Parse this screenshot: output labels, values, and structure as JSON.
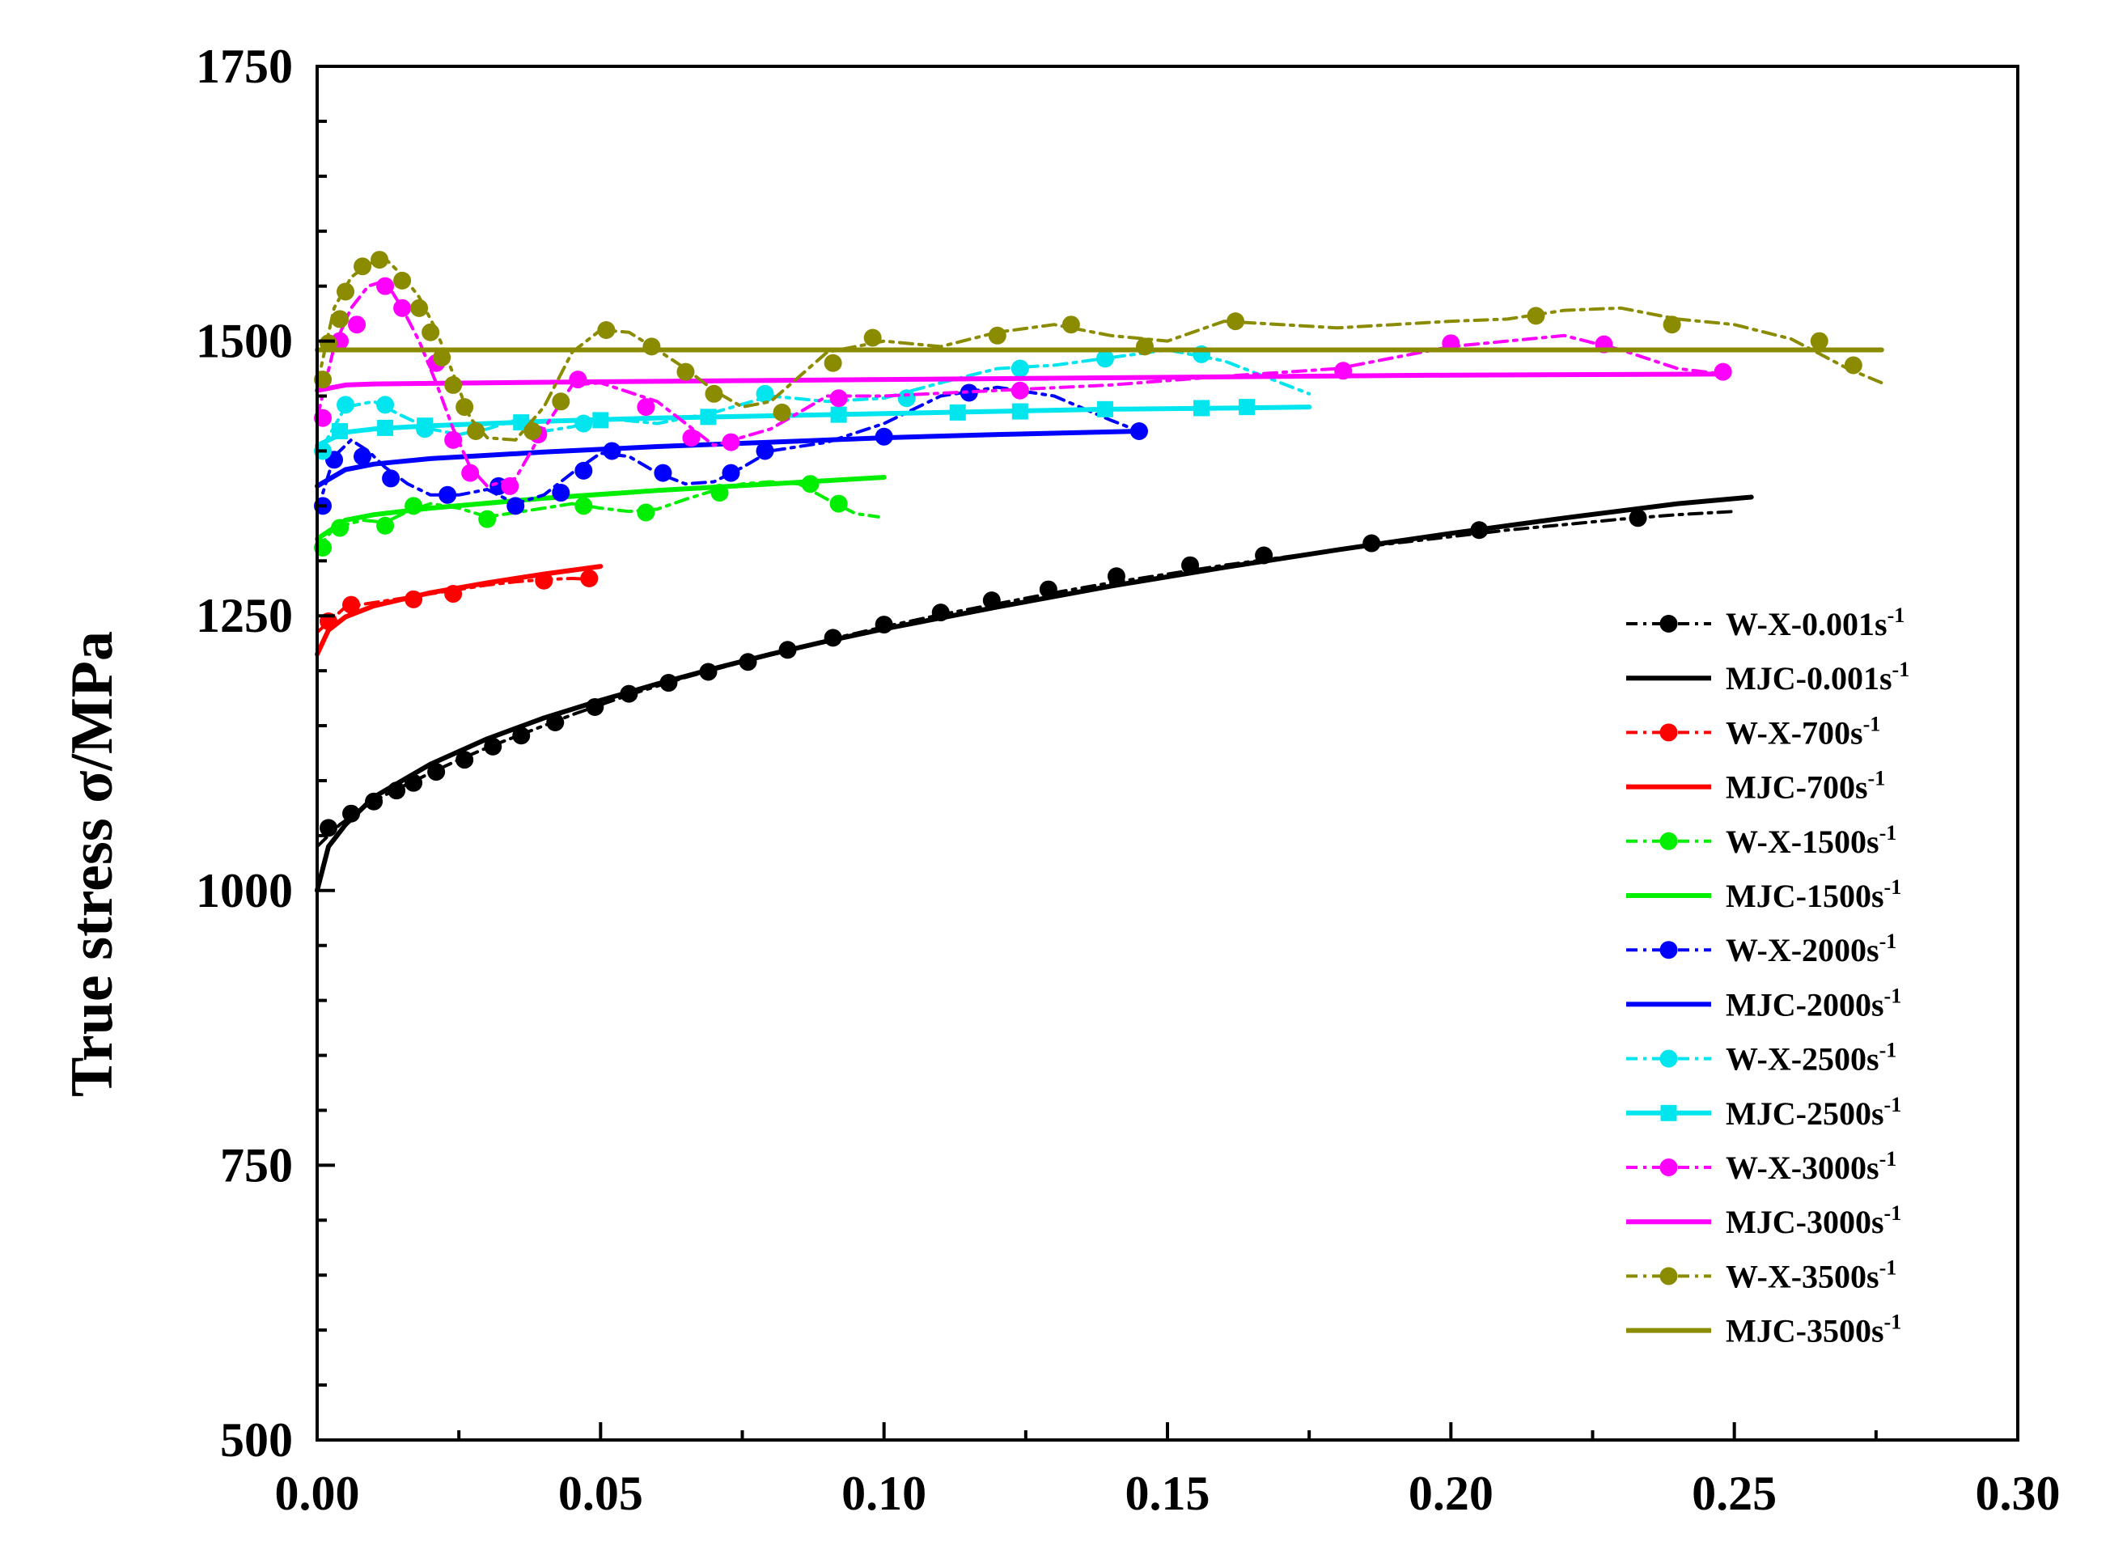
{
  "chart_data": {
    "type": "line",
    "title": "",
    "xlabel": "",
    "ylabel": "True stress σ/MPa",
    "xlim": [
      0,
      0.3
    ],
    "ylim": [
      500,
      1750
    ],
    "x_ticks": [
      "0.00",
      "0.05",
      "0.10",
      "0.15",
      "0.20",
      "0.25",
      "0.30"
    ],
    "y_ticks": [
      "500",
      "750",
      "1000",
      "1250",
      "1500",
      "1750"
    ],
    "grid": false,
    "legend_position": "right",
    "series": [
      {
        "name": "W-X-0.001",
        "legend_label": "W-X-0.001s",
        "legend_sup": "-1",
        "kind": "experimental",
        "color": "#000000",
        "marker": "circle",
        "x": [
          0,
          0.004,
          0.008,
          0.012,
          0.016,
          0.02,
          0.025,
          0.03,
          0.035,
          0.04,
          0.045,
          0.05,
          0.055,
          0.06,
          0.065,
          0.07,
          0.075,
          0.08,
          0.085,
          0.09,
          0.095,
          0.1,
          0.11,
          0.12,
          0.13,
          0.14,
          0.15,
          0.16,
          0.17,
          0.18,
          0.19,
          0.2,
          0.21,
          0.22,
          0.23,
          0.24,
          0.25
        ],
        "y": [
          1040,
          1060,
          1075,
          1087,
          1097,
          1107,
          1119,
          1130,
          1140,
          1150,
          1160,
          1169,
          1178,
          1186,
          1194,
          1201,
          1208,
          1215,
          1221,
          1228,
          1234,
          1240,
          1251,
          1261,
          1271,
          1280,
          1288,
          1296,
          1303,
          1310,
          1316,
          1322,
          1328,
          1333,
          1338,
          1342,
          1345
        ],
        "marker_x": [
          0.002,
          0.006,
          0.01,
          0.014,
          0.017,
          0.021,
          0.026,
          0.031,
          0.036,
          0.042,
          0.049,
          0.055,
          0.062,
          0.069,
          0.076,
          0.083,
          0.091,
          0.1,
          0.11,
          0.119,
          0.129,
          0.141,
          0.154,
          0.167,
          0.186,
          0.205,
          0.233
        ],
        "marker_y": [
          1057,
          1070,
          1081,
          1091,
          1098,
          1108,
          1119,
          1131,
          1141,
          1153,
          1167,
          1179,
          1189,
          1199,
          1208,
          1219,
          1230,
          1242,
          1253,
          1264,
          1274,
          1286,
          1296,
          1305,
          1316,
          1328,
          1339
        ]
      },
      {
        "name": "MJC-0.001",
        "legend_label": "MJC-0.001s",
        "legend_sup": "-1",
        "kind": "model",
        "color": "#000000",
        "marker": "none",
        "x": [
          0,
          0.002,
          0.005,
          0.01,
          0.02,
          0.03,
          0.04,
          0.05,
          0.06,
          0.07,
          0.08,
          0.09,
          0.1,
          0.12,
          0.14,
          0.16,
          0.18,
          0.2,
          0.22,
          0.24,
          0.253
        ],
        "y": [
          1000,
          1040,
          1060,
          1085,
          1115,
          1138,
          1157,
          1173,
          1188,
          1202,
          1215,
          1227,
          1238,
          1258,
          1277,
          1294,
          1310,
          1325,
          1339,
          1352,
          1358
        ]
      },
      {
        "name": "W-X-700",
        "legend_label": "W-X-700s",
        "legend_sup": "-1",
        "kind": "experimental",
        "color": "#ff0000",
        "marker": "circle",
        "x": [
          0,
          0.005,
          0.01,
          0.015,
          0.02,
          0.025,
          0.03,
          0.035,
          0.04,
          0.045,
          0.049
        ],
        "y": [
          1235,
          1258,
          1262,
          1266,
          1270,
          1274,
          1278,
          1281,
          1283,
          1284,
          1283
        ],
        "marker_x": [
          0.002,
          0.006,
          0.017,
          0.024,
          0.04,
          0.048
        ],
        "marker_y": [
          1245,
          1260,
          1265,
          1270,
          1282,
          1284
        ]
      },
      {
        "name": "MJC-700",
        "legend_label": "MJC-700s",
        "legend_sup": "-1",
        "kind": "model",
        "color": "#ff0000",
        "marker": "none",
        "x": [
          0,
          0.002,
          0.005,
          0.01,
          0.02,
          0.03,
          0.04,
          0.05
        ],
        "y": [
          1215,
          1237,
          1249,
          1259,
          1271,
          1280,
          1288,
          1295
        ]
      },
      {
        "name": "W-X-1500",
        "legend_label": "W-X-1500s",
        "legend_sup": "-1",
        "kind": "experimental",
        "color": "#00ee00",
        "marker": "circle",
        "x": [
          0,
          0.003,
          0.008,
          0.012,
          0.016,
          0.02,
          0.025,
          0.03,
          0.035,
          0.04,
          0.045,
          0.05,
          0.055,
          0.06,
          0.065,
          0.07,
          0.075,
          0.08,
          0.085,
          0.09,
          0.095,
          0.099
        ],
        "y": [
          1310,
          1330,
          1337,
          1335,
          1345,
          1352,
          1348,
          1340,
          1344,
          1348,
          1352,
          1348,
          1345,
          1347,
          1356,
          1364,
          1370,
          1372,
          1370,
          1356,
          1343,
          1340
        ],
        "marker_x": [
          0.001,
          0.004,
          0.012,
          0.017,
          0.03,
          0.047,
          0.058,
          0.071,
          0.087,
          0.092
        ],
        "marker_y": [
          1312,
          1330,
          1332,
          1350,
          1338,
          1350,
          1344,
          1362,
          1370,
          1352
        ]
      },
      {
        "name": "MJC-1500",
        "legend_label": "MJC-1500s",
        "legend_sup": "-1",
        "kind": "model",
        "color": "#00ee00",
        "marker": "none",
        "x": [
          0,
          0.005,
          0.01,
          0.02,
          0.04,
          0.06,
          0.08,
          0.1
        ],
        "y": [
          1320,
          1337,
          1342,
          1348,
          1357,
          1364,
          1370,
          1376
        ]
      },
      {
        "name": "W-X-2000",
        "legend_label": "W-X-2000s",
        "legend_sup": "-1",
        "kind": "experimental",
        "color": "#0000ff",
        "marker": "circle",
        "x": [
          0,
          0.003,
          0.006,
          0.009,
          0.012,
          0.016,
          0.02,
          0.025,
          0.03,
          0.035,
          0.04,
          0.045,
          0.05,
          0.055,
          0.06,
          0.065,
          0.07,
          0.075,
          0.08,
          0.09,
          0.1,
          0.11,
          0.12,
          0.13,
          0.14,
          0.145
        ],
        "y": [
          1345,
          1395,
          1410,
          1400,
          1385,
          1370,
          1360,
          1360,
          1365,
          1352,
          1360,
          1380,
          1398,
          1395,
          1380,
          1370,
          1372,
          1385,
          1400,
          1408,
          1425,
          1450,
          1458,
          1450,
          1428,
          1418
        ],
        "marker_x": [
          0.001,
          0.003,
          0.008,
          0.013,
          0.023,
          0.032,
          0.035,
          0.043,
          0.047,
          0.052,
          0.061,
          0.073,
          0.079,
          0.1,
          0.115,
          0.145
        ],
        "marker_y": [
          1350,
          1392,
          1395,
          1375,
          1360,
          1368,
          1350,
          1362,
          1382,
          1400,
          1380,
          1380,
          1400,
          1413,
          1453,
          1418
        ]
      },
      {
        "name": "MJC-2000",
        "legend_label": "MJC-2000s",
        "legend_sup": "-1",
        "kind": "model",
        "color": "#0000ff",
        "marker": "none",
        "x": [
          0,
          0.005,
          0.01,
          0.02,
          0.04,
          0.06,
          0.08,
          0.1,
          0.12,
          0.145
        ],
        "y": [
          1368,
          1383,
          1388,
          1393,
          1399,
          1404,
          1408,
          1412,
          1415,
          1418
        ]
      },
      {
        "name": "W-X-2500",
        "legend_label": "W-X-2500s",
        "legend_sup": "-1",
        "kind": "experimental",
        "color": "#00e5ee",
        "marker": "circle",
        "x": [
          0,
          0.005,
          0.01,
          0.015,
          0.02,
          0.025,
          0.03,
          0.035,
          0.04,
          0.045,
          0.05,
          0.06,
          0.07,
          0.08,
          0.09,
          0.1,
          0.11,
          0.12,
          0.13,
          0.14,
          0.15,
          0.16,
          0.17,
          0.175
        ],
        "y": [
          1395,
          1440,
          1445,
          1432,
          1420,
          1415,
          1420,
          1428,
          1418,
          1422,
          1430,
          1425,
          1435,
          1450,
          1445,
          1448,
          1462,
          1475,
          1478,
          1485,
          1492,
          1482,
          1462,
          1452
        ],
        "marker_x": [
          0.001,
          0.005,
          0.012,
          0.019,
          0.047,
          0.079,
          0.104,
          0.124,
          0.139,
          0.156
        ],
        "marker_y": [
          1400,
          1442,
          1442,
          1420,
          1425,
          1452,
          1448,
          1475,
          1484,
          1488
        ]
      },
      {
        "name": "MJC-2500",
        "legend_label": "MJC-2500s",
        "legend_sup": "-1",
        "kind": "model",
        "color": "#00e5ee",
        "marker": "square",
        "x": [
          0,
          0.005,
          0.01,
          0.02,
          0.04,
          0.06,
          0.08,
          0.1,
          0.12,
          0.14,
          0.16,
          0.175
        ],
        "y": [
          1405,
          1417,
          1420,
          1423,
          1427,
          1430,
          1432,
          1434,
          1436,
          1438,
          1439,
          1440
        ],
        "marker_x": [
          0.004,
          0.012,
          0.019,
          0.036,
          0.05,
          0.069,
          0.092,
          0.113,
          0.124,
          0.139,
          0.156,
          0.164
        ],
        "marker_y": [
          1418,
          1421,
          1423,
          1426,
          1428,
          1431,
          1433,
          1435,
          1436,
          1438,
          1439,
          1440
        ]
      },
      {
        "name": "W-X-3000",
        "legend_label": "W-X-3000s",
        "legend_sup": "-1",
        "kind": "experimental",
        "color": "#ff00ff",
        "marker": "circle",
        "x": [
          0,
          0.003,
          0.006,
          0.009,
          0.012,
          0.015,
          0.018,
          0.021,
          0.024,
          0.027,
          0.03,
          0.035,
          0.04,
          0.045,
          0.05,
          0.06,
          0.07,
          0.08,
          0.09,
          0.1,
          0.12,
          0.14,
          0.16,
          0.18,
          0.2,
          0.22,
          0.23,
          0.24,
          0.248
        ],
        "y": [
          1430,
          1495,
          1530,
          1550,
          1555,
          1530,
          1500,
          1462,
          1420,
          1385,
          1368,
          1375,
          1420,
          1460,
          1462,
          1445,
          1405,
          1420,
          1450,
          1450,
          1455,
          1460,
          1468,
          1475,
          1495,
          1505,
          1492,
          1475,
          1470
        ],
        "marker_x": [
          0.001,
          0.004,
          0.007,
          0.012,
          0.015,
          0.021,
          0.024,
          0.027,
          0.034,
          0.039,
          0.046,
          0.058,
          0.066,
          0.073,
          0.092,
          0.124,
          0.181,
          0.2,
          0.227,
          0.248
        ],
        "marker_y": [
          1430,
          1500,
          1515,
          1550,
          1530,
          1480,
          1410,
          1380,
          1368,
          1415,
          1465,
          1440,
          1412,
          1408,
          1448,
          1455,
          1473,
          1498,
          1497,
          1472
        ]
      },
      {
        "name": "MJC-3000",
        "legend_label": "MJC-3000s",
        "legend_sup": "-1",
        "kind": "model",
        "color": "#ff00ff",
        "marker": "none",
        "x": [
          0,
          0.005,
          0.01,
          0.05,
          0.1,
          0.15,
          0.2,
          0.248
        ],
        "y": [
          1455,
          1460,
          1461,
          1463,
          1465,
          1467,
          1469,
          1470
        ]
      },
      {
        "name": "W-X-3500",
        "legend_label": "W-X-3500s",
        "legend_sup": "-1",
        "kind": "experimental",
        "color": "#8b8b00",
        "marker": "circle",
        "x": [
          0,
          0.003,
          0.006,
          0.009,
          0.012,
          0.015,
          0.018,
          0.021,
          0.024,
          0.027,
          0.03,
          0.035,
          0.04,
          0.045,
          0.05,
          0.055,
          0.06,
          0.065,
          0.07,
          0.075,
          0.08,
          0.09,
          0.1,
          0.11,
          0.12,
          0.13,
          0.14,
          0.15,
          0.16,
          0.17,
          0.18,
          0.19,
          0.2,
          0.21,
          0.22,
          0.23,
          0.24,
          0.25,
          0.26,
          0.27,
          0.276
        ],
        "y": [
          1460,
          1530,
          1558,
          1570,
          1575,
          1560,
          1540,
          1510,
          1470,
          1430,
          1412,
          1410,
          1440,
          1490,
          1510,
          1508,
          1492,
          1475,
          1455,
          1440,
          1445,
          1490,
          1500,
          1495,
          1508,
          1515,
          1505,
          1500,
          1518,
          1515,
          1512,
          1515,
          1518,
          1520,
          1528,
          1530,
          1520,
          1515,
          1502,
          1475,
          1462
        ],
        "marker_x": [
          0.001,
          0.002,
          0.004,
          0.005,
          0.008,
          0.011,
          0.015,
          0.018,
          0.02,
          0.022,
          0.024,
          0.026,
          0.028,
          0.038,
          0.043,
          0.051,
          0.059,
          0.065,
          0.07,
          0.082,
          0.091,
          0.098,
          0.12,
          0.133,
          0.146,
          0.162,
          0.215,
          0.239,
          0.265,
          0.271
        ],
        "marker_y": [
          1465,
          1498,
          1520,
          1545,
          1568,
          1574,
          1555,
          1530,
          1508,
          1485,
          1460,
          1440,
          1418,
          1418,
          1445,
          1510,
          1495,
          1472,
          1452,
          1435,
          1480,
          1503,
          1505,
          1515,
          1495,
          1518,
          1523,
          1515,
          1500,
          1478
        ]
      },
      {
        "name": "MJC-3500",
        "legend_label": "MJC-3500s",
        "legend_sup": "-1",
        "kind": "model",
        "color": "#8b8b00",
        "marker": "none",
        "x": [
          0,
          0.276
        ],
        "y": [
          1492,
          1492
        ]
      }
    ]
  }
}
